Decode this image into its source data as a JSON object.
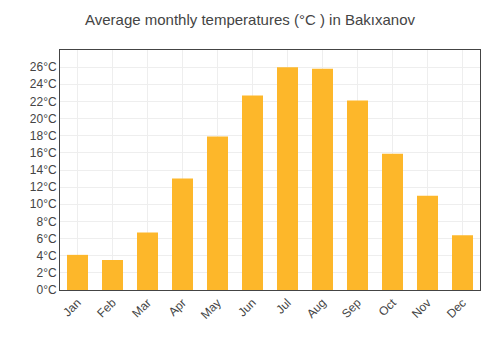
{
  "chart_data": {
    "type": "bar",
    "title": "Average monthly temperatures (°C ) in Bakıxanov",
    "categories": [
      "Jan",
      "Feb",
      "Mar",
      "Apr",
      "May",
      "Jun",
      "Jul",
      "Aug",
      "Sep",
      "Oct",
      "Nov",
      "Dec"
    ],
    "values": [
      4.1,
      3.5,
      6.7,
      13.0,
      17.9,
      22.7,
      26.0,
      25.8,
      22.1,
      15.9,
      11.0,
      6.4
    ],
    "color": "#FDB72A",
    "ylim": [
      0,
      28
    ],
    "yticks": [
      {
        "value": 0,
        "label": "0°C"
      },
      {
        "value": 2,
        "label": "2°C"
      },
      {
        "value": 4,
        "label": "4°C"
      },
      {
        "value": 6,
        "label": "6°C"
      },
      {
        "value": 8,
        "label": "8°C"
      },
      {
        "value": 10,
        "label": "10°C"
      },
      {
        "value": 12,
        "label": "12°C"
      },
      {
        "value": 14,
        "label": "14°C"
      },
      {
        "value": 16,
        "label": "16°C"
      },
      {
        "value": 18,
        "label": "18°C"
      },
      {
        "value": 20,
        "label": "20°C"
      },
      {
        "value": 22,
        "label": "22°C"
      },
      {
        "value": 24,
        "label": "24°C"
      },
      {
        "value": 26,
        "label": "26°C"
      }
    ],
    "grid": true
  }
}
